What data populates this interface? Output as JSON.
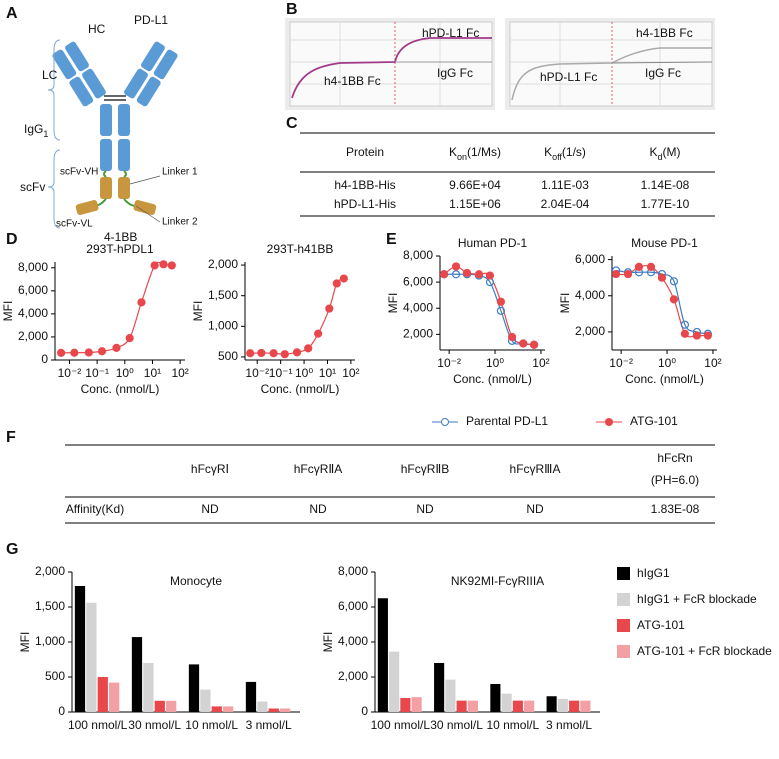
{
  "panel_labels": [
    "A",
    "B",
    "C",
    "D",
    "E",
    "F",
    "G"
  ],
  "diagram_a": {
    "hc": "HC",
    "target1": "PD-L1",
    "lc": "LC",
    "igg": {
      "main": "IgG",
      "sub": "1"
    },
    "scfv": "scFv",
    "scfv_vh": "scFv-VH",
    "scfv_vl": "scFv-VL",
    "linker1": "Linker 1",
    "linker2": "Linker 2",
    "target2": "4-1BB"
  },
  "sensorgrams_b": [
    {
      "labels": [
        "hPD-L1 Fc",
        "h4-1BB Fc",
        "IgG Fc"
      ]
    },
    {
      "labels": [
        "h4-1BB Fc",
        "hPD-L1 Fc",
        "IgG Fc"
      ]
    }
  ],
  "table_c": {
    "headers": [
      {
        "main": "Protein"
      },
      {
        "main": "K",
        "sub": "on",
        "unit": "(1/Ms)"
      },
      {
        "main": "K",
        "sub": "off",
        "unit": "(1/s)"
      },
      {
        "main": "K",
        "sub": "d",
        "unit": "(M)"
      }
    ],
    "rows": [
      [
        "h4-1BB-His",
        "9.66E+04",
        "1.11E-03",
        "1.14E-08"
      ],
      [
        "hPD-L1-His",
        "1.15E+06",
        "2.04E-04",
        "1.77E-10"
      ]
    ]
  },
  "chart_data": [
    {
      "type": "scatter",
      "title": "293T-hPDL1",
      "x_label": "Conc. (nmol/L)",
      "y_label": "MFI",
      "xscale": "log",
      "xlim": [
        0.003,
        150
      ],
      "xticks": [
        {
          "value": 0.01,
          "label": "10⁻²"
        },
        {
          "value": 0.1,
          "label": "10⁻¹"
        },
        {
          "value": 1,
          "label": "10⁰"
        },
        {
          "value": 10,
          "label": "10¹"
        },
        {
          "value": 100,
          "label": "10²"
        }
      ],
      "ylim": [
        0,
        8500
      ],
      "yticks": [
        0,
        {
          "value": 2000,
          "label": "2,000"
        },
        {
          "value": 4000,
          "label": "4,000"
        },
        {
          "value": 6000,
          "label": "6,000"
        },
        {
          "value": 8000,
          "label": "8,000"
        }
      ],
      "fit_line": true,
      "series": [
        {
          "color": "#e8474c",
          "marker": "filled",
          "x": [
            0.005,
            0.015,
            0.05,
            0.15,
            0.5,
            1.5,
            4,
            12,
            25,
            50
          ],
          "values": [
            620,
            630,
            650,
            760,
            1050,
            1900,
            5000,
            8200,
            8300,
            8200
          ]
        }
      ]
    },
    {
      "type": "scatter",
      "title": "293T-h41BB",
      "x_label": "Conc. (nmol/L)",
      "y_label": "MFI",
      "xscale": "log",
      "xlim": [
        0.003,
        150
      ],
      "xticks": [
        {
          "value": 0.01,
          "label": "10⁻²"
        },
        {
          "value": 0.1,
          "label": "10⁻¹"
        },
        {
          "value": 1,
          "label": "10⁰"
        },
        {
          "value": 10,
          "label": "10¹"
        },
        {
          "value": 100,
          "label": "10²"
        }
      ],
      "ylim": [
        450,
        2050
      ],
      "yticks": [
        500,
        {
          "value": 1000,
          "label": "1,000"
        },
        {
          "value": 1500,
          "label": "1,500"
        },
        {
          "value": 2000,
          "label": "2,000"
        }
      ],
      "fit_line": true,
      "series": [
        {
          "color": "#e8474c",
          "marker": "filled",
          "x": [
            0.005,
            0.015,
            0.05,
            0.15,
            0.5,
            1.5,
            4,
            12,
            25,
            50
          ],
          "values": [
            560,
            565,
            560,
            545,
            575,
            640,
            880,
            1290,
            1700,
            1780
          ]
        }
      ]
    },
    {
      "type": "scatter",
      "title": "Human PD-1",
      "x_label": "Conc. (nmol/L)",
      "y_label": "MFI",
      "xscale": "log",
      "xlim": [
        0.004,
        150
      ],
      "xticks": [
        {
          "value": 0.01,
          "label": "10⁻²"
        },
        {
          "value": 1,
          "label": "10⁰"
        },
        {
          "value": 100,
          "label": "10²"
        }
      ],
      "ylim": [
        800,
        8000
      ],
      "yticks": [
        {
          "value": 2000,
          "label": "2,000"
        },
        {
          "value": 4000,
          "label": "4,000"
        },
        {
          "value": 6000,
          "label": "6,000"
        },
        {
          "value": 8000,
          "label": "8,000"
        }
      ],
      "fit_line": true,
      "series": [
        {
          "name": "Parental PD-L1",
          "color": "#3b7dc4",
          "marker": "open",
          "x": [
            0.006,
            0.02,
            0.06,
            0.2,
            0.6,
            1.8,
            5.5,
            17,
            50
          ],
          "values": [
            6600,
            6600,
            6600,
            6500,
            6000,
            3800,
            1500,
            1300,
            1200
          ]
        },
        {
          "name": "ATG-101",
          "color": "#e8474c",
          "marker": "filled",
          "x": [
            0.006,
            0.02,
            0.06,
            0.2,
            0.6,
            1.8,
            5.5,
            17,
            50
          ],
          "values": [
            6600,
            7200,
            6700,
            6600,
            6500,
            4500,
            1800,
            1300,
            1200
          ]
        }
      ]
    },
    {
      "type": "scatter",
      "title": "Mouse PD-1",
      "x_label": "Conc. (nmol/L)",
      "y_label": "MFI",
      "xscale": "log",
      "xlim": [
        0.004,
        150
      ],
      "xticks": [
        {
          "value": 0.01,
          "label": "10⁻²"
        },
        {
          "value": 1,
          "label": "10⁰"
        },
        {
          "value": 100,
          "label": "10²"
        }
      ],
      "ylim": [
        1000,
        6200
      ],
      "yticks": [
        {
          "value": 2000,
          "label": "2,000"
        },
        {
          "value": 4000,
          "label": "4,000"
        },
        {
          "value": 6000,
          "label": "6,000"
        }
      ],
      "fit_line": true,
      "series": [
        {
          "color": "#3b7dc4",
          "marker": "open",
          "x": [
            0.006,
            0.02,
            0.06,
            0.2,
            0.6,
            2,
            6,
            20,
            60
          ],
          "values": [
            5400,
            5300,
            5300,
            5300,
            5200,
            4800,
            2400,
            2000,
            1900
          ]
        },
        {
          "color": "#e8474c",
          "marker": "filled",
          "x": [
            0.006,
            0.02,
            0.06,
            0.2,
            0.6,
            2,
            6,
            20,
            60
          ],
          "values": [
            5200,
            5200,
            5600,
            5600,
            5000,
            3800,
            1900,
            1800,
            1800
          ]
        }
      ]
    },
    {
      "type": "bar",
      "title": "Monocyte",
      "y_label": "MFI",
      "categories": [
        "100 nmol/L",
        "30 nmol/L",
        "10 nmol/L",
        "3 nmol/L"
      ],
      "ylim": [
        0,
        2000
      ],
      "yticks": [
        0,
        500,
        {
          "value": 1000,
          "label": "1,000"
        },
        {
          "value": 1500,
          "label": "1,500"
        },
        {
          "value": 2000,
          "label": "2,000"
        }
      ],
      "series": [
        {
          "color": "#000000",
          "values": [
            1800,
            1070,
            680,
            430
          ]
        },
        {
          "color": "#d3d3d3",
          "values": [
            1560,
            700,
            320,
            150
          ]
        },
        {
          "color": "#e8474c",
          "values": [
            500,
            160,
            80,
            50
          ]
        },
        {
          "color": "#f2a0a3",
          "values": [
            420,
            160,
            80,
            50
          ]
        }
      ]
    },
    {
      "type": "bar",
      "title": "NK92MI-FcγRIIIA",
      "y_label": "MFI",
      "categories": [
        "100 nmol/L",
        "30 nmol/L",
        "10 nmol/L",
        "3 nmol/L"
      ],
      "ylim": [
        0,
        8000
      ],
      "yticks": [
        0,
        {
          "value": 2000,
          "label": "2,000"
        },
        {
          "value": 4000,
          "label": "4,000"
        },
        {
          "value": 6000,
          "label": "6,000"
        },
        {
          "value": 8000,
          "label": "8,000"
        }
      ],
      "series": [
        {
          "name": "hIgG1",
          "color": "#000000",
          "values": [
            6500,
            2800,
            1600,
            900
          ]
        },
        {
          "name": "hIgG1 + FcR blockade",
          "color": "#d3d3d3",
          "values": [
            3450,
            1850,
            1050,
            750
          ]
        },
        {
          "name": "ATG-101",
          "color": "#e8474c",
          "values": [
            800,
            650,
            650,
            650
          ]
        },
        {
          "name": "ATG-101 + FcR blockade",
          "color": "#f2a0a3",
          "values": [
            850,
            650,
            650,
            650
          ]
        }
      ]
    }
  ],
  "table_f": {
    "headers": [
      [
        "hFcγRⅠ"
      ],
      [
        "hFcγRⅡA"
      ],
      [
        "hFcγRⅡB"
      ],
      [
        "hFcγRⅢA"
      ],
      [
        "hFcRn",
        "(PH=6.0)"
      ]
    ],
    "rows": [
      [
        "Affinity(Kd)",
        "ND",
        "ND",
        "ND",
        "ND",
        "1.83E-08"
      ]
    ]
  }
}
